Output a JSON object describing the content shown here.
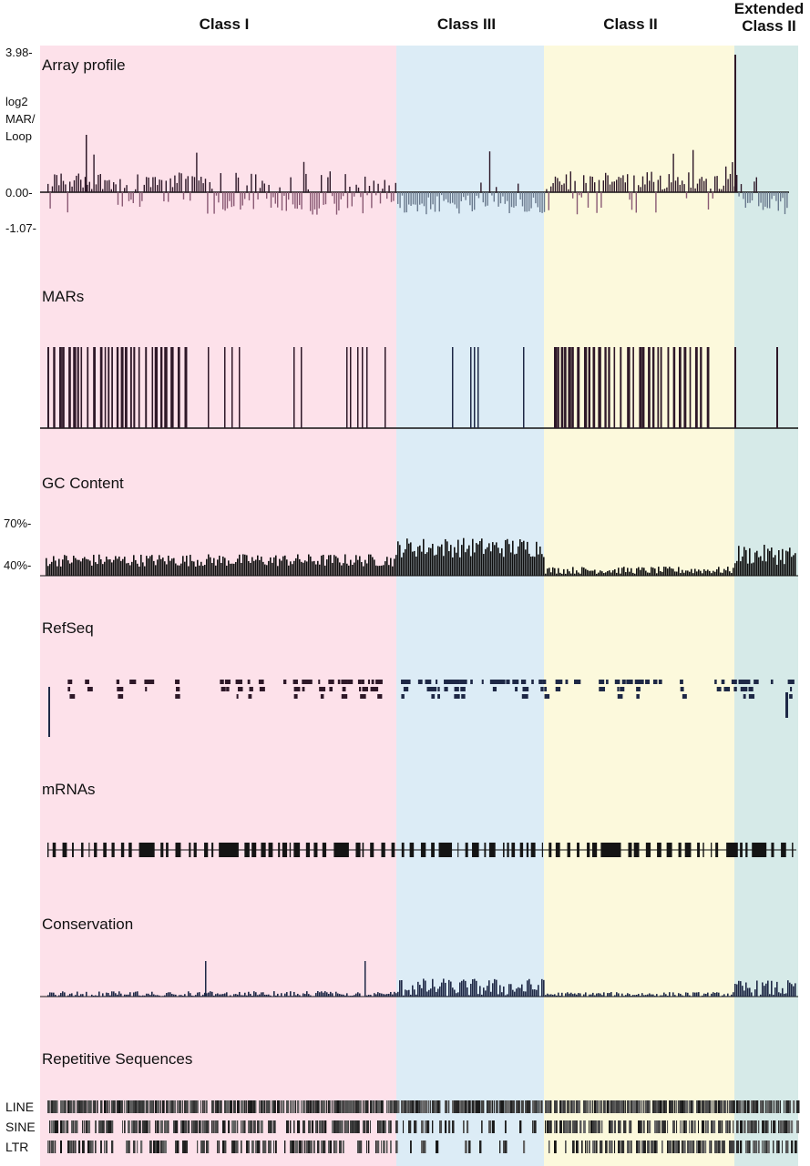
{
  "regions": [
    {
      "label": "Class I",
      "color": "#fde1ea",
      "start": 0,
      "end": 385
    },
    {
      "label": "Class III",
      "color": "#dcecf6",
      "start": 385,
      "end": 547
    },
    {
      "label": "Class II",
      "color": "#fcf9dc",
      "start": 547,
      "end": 756
    },
    {
      "label": "Extended Class II",
      "label_line1": "Extended",
      "label_line2": "Class II",
      "color": "#d6eae8",
      "start": 756,
      "end": 826
    }
  ],
  "tracks": {
    "array_profile": {
      "label": "Array profile",
      "y_top": "3.98-",
      "y_label_1": "log2",
      "y_label_2": "MAR/",
      "y_label_3": "Loop",
      "y_zero": "0.00-",
      "y_bottom": "-1.07-"
    },
    "mars": {
      "label": "MARs"
    },
    "gc_content": {
      "label": "GC Content",
      "y_top": "70%-",
      "y_bottom": "40%-"
    },
    "refseq": {
      "label": "RefSeq"
    },
    "mrnas": {
      "label": "mRNAs"
    },
    "conservation": {
      "label": "Conservation"
    },
    "repetitive": {
      "label": "Repetitive Sequences",
      "rows": [
        "LINE",
        "SINE",
        "LTR"
      ]
    }
  },
  "colors": {
    "dark_bar": "#2e1828",
    "negative_bar": "#8a5a74",
    "navy_bar": "#1e2846",
    "gc_bar": "#101010"
  }
}
